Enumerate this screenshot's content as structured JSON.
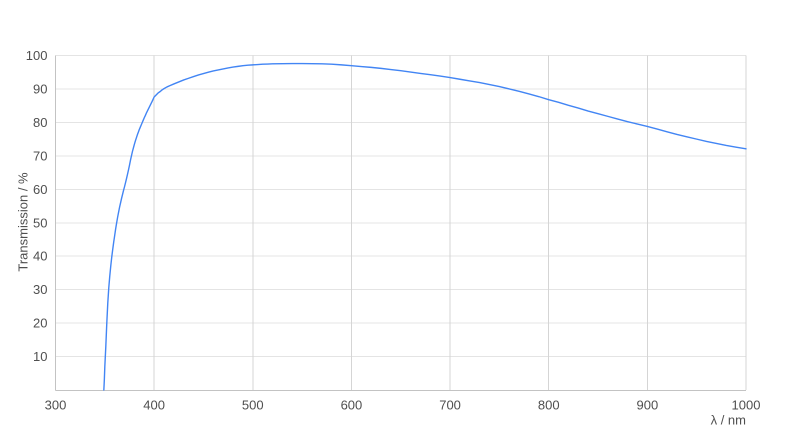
{
  "page": {
    "background": "#ffffff"
  },
  "chart_data": {
    "type": "line",
    "title": "",
    "xlabel": "λ / nm",
    "ylabel": "Transmission / %",
    "xlim": [
      300,
      1000
    ],
    "ylim": [
      0,
      100
    ],
    "x_ticks": [
      300,
      400,
      500,
      600,
      700,
      800,
      900,
      1000
    ],
    "y_ticks": [
      10,
      20,
      30,
      40,
      50,
      60,
      70,
      80,
      90,
      100
    ],
    "grid": "on",
    "legend": "none",
    "colors": {
      "line": "#4285f4",
      "grid_horizontal": "#e4e4e4",
      "grid_vertical": "#d5d5d5",
      "axis": "#c3c3c3",
      "text": "#4f4f4f",
      "background": "#ffffff"
    },
    "series": [
      {
        "name": "Transmission",
        "color": "#4285f4",
        "points": [
          [
            349,
            0
          ],
          [
            349.5,
            3
          ],
          [
            350,
            7
          ],
          [
            350.5,
            10
          ],
          [
            351,
            13
          ],
          [
            351.5,
            16.5
          ],
          [
            352,
            20
          ],
          [
            352.5,
            23
          ],
          [
            353,
            26
          ],
          [
            354,
            30.5
          ],
          [
            355,
            34
          ],
          [
            356,
            37
          ],
          [
            357,
            39.7
          ],
          [
            358,
            42
          ],
          [
            359,
            44.2
          ],
          [
            360,
            46.2
          ],
          [
            361,
            48.2
          ],
          [
            362,
            50
          ],
          [
            363,
            51.7
          ],
          [
            364,
            53.2
          ],
          [
            365,
            54.7
          ],
          [
            366,
            56
          ],
          [
            367,
            57.3
          ],
          [
            368,
            58.5
          ],
          [
            369,
            59.7
          ],
          [
            370,
            60.8
          ],
          [
            371,
            62
          ],
          [
            372,
            63.2
          ],
          [
            373,
            64.5
          ],
          [
            374,
            65.8
          ],
          [
            375,
            67.2
          ],
          [
            376,
            68.7
          ],
          [
            377,
            70
          ],
          [
            378,
            71.3
          ],
          [
            379,
            72.4
          ],
          [
            380,
            73.5
          ],
          [
            381,
            74.5
          ],
          [
            382,
            75.4
          ],
          [
            383,
            76.3
          ],
          [
            384,
            77.1
          ],
          [
            385,
            77.9
          ],
          [
            386,
            78.6
          ],
          [
            387,
            79.3
          ],
          [
            388,
            80
          ],
          [
            389,
            80.7
          ],
          [
            390,
            81.4
          ],
          [
            391,
            82
          ],
          [
            392,
            82.7
          ],
          [
            393,
            83.3
          ],
          [
            394,
            83.9
          ],
          [
            395,
            84.5
          ],
          [
            396,
            85.1
          ],
          [
            397,
            85.7
          ],
          [
            398,
            86.3
          ],
          [
            400,
            87.6
          ],
          [
            402,
            88.2
          ],
          [
            404,
            88.8
          ],
          [
            406,
            89.2
          ],
          [
            408,
            89.7
          ],
          [
            410,
            90.1
          ],
          [
            413,
            90.6
          ],
          [
            416,
            91
          ],
          [
            420,
            91.5
          ],
          [
            425,
            92.1
          ],
          [
            430,
            92.7
          ],
          [
            435,
            93.2
          ],
          [
            440,
            93.7
          ],
          [
            445,
            94.2
          ],
          [
            450,
            94.6
          ],
          [
            455,
            95
          ],
          [
            460,
            95.4
          ],
          [
            465,
            95.7
          ],
          [
            470,
            96
          ],
          [
            475,
            96.3
          ],
          [
            480,
            96.55
          ],
          [
            485,
            96.75
          ],
          [
            490,
            96.95
          ],
          [
            495,
            97.1
          ],
          [
            500,
            97.2
          ],
          [
            505,
            97.3
          ],
          [
            510,
            97.4
          ],
          [
            515,
            97.45
          ],
          [
            520,
            97.5
          ],
          [
            530,
            97.55
          ],
          [
            540,
            97.6
          ],
          [
            550,
            97.6
          ],
          [
            560,
            97.55
          ],
          [
            570,
            97.5
          ],
          [
            580,
            97.4
          ],
          [
            590,
            97.2
          ],
          [
            600,
            96.95
          ],
          [
            610,
            96.7
          ],
          [
            620,
            96.45
          ],
          [
            630,
            96.15
          ],
          [
            640,
            95.8
          ],
          [
            650,
            95.45
          ],
          [
            660,
            95.05
          ],
          [
            670,
            94.65
          ],
          [
            680,
            94.25
          ],
          [
            690,
            93.85
          ],
          [
            700,
            93.4
          ],
          [
            710,
            92.9
          ],
          [
            720,
            92.4
          ],
          [
            730,
            91.9
          ],
          [
            740,
            91.3
          ],
          [
            750,
            90.7
          ],
          [
            760,
            90
          ],
          [
            770,
            89.3
          ],
          [
            780,
            88.5
          ],
          [
            790,
            87.7
          ],
          [
            800,
            86.8
          ],
          [
            810,
            86
          ],
          [
            820,
            85.1
          ],
          [
            830,
            84.3
          ],
          [
            840,
            83.4
          ],
          [
            850,
            82.6
          ],
          [
            860,
            81.8
          ],
          [
            870,
            81
          ],
          [
            880,
            80.2
          ],
          [
            890,
            79.5
          ],
          [
            900,
            78.8
          ],
          [
            910,
            78
          ],
          [
            920,
            77.2
          ],
          [
            930,
            76.4
          ],
          [
            940,
            75.7
          ],
          [
            950,
            75
          ],
          [
            960,
            74.3
          ],
          [
            970,
            73.7
          ],
          [
            980,
            73.1
          ],
          [
            990,
            72.6
          ],
          [
            1000,
            72.1
          ]
        ]
      }
    ]
  }
}
